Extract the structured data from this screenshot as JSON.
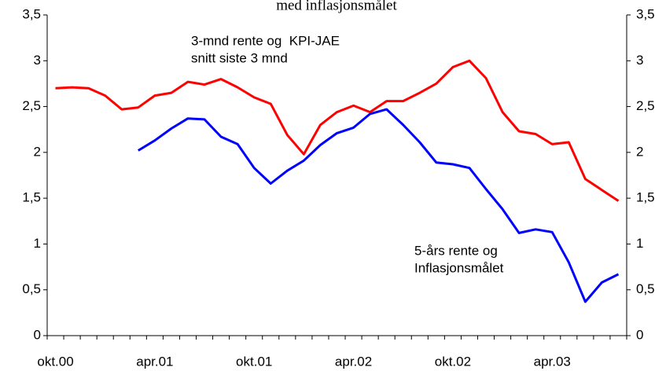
{
  "chart_data": {
    "type": "line",
    "title": "med inflasjonsmålet",
    "categories": [
      "okt.00",
      null,
      null,
      null,
      null,
      null,
      "apr.01",
      null,
      null,
      null,
      null,
      null,
      "okt.01",
      null,
      null,
      null,
      null,
      null,
      "apr.02",
      null,
      null,
      null,
      null,
      null,
      "okt.02",
      null,
      null,
      null,
      null,
      null,
      "apr.03",
      null,
      null,
      null,
      null
    ],
    "series": [
      {
        "label_lines": [
          "3-mnd rente og  KPI-JAE",
          "snitt siste 3 mnd"
        ],
        "color": "#ff0000",
        "values": [
          2.7,
          2.71,
          2.7,
          2.62,
          2.47,
          2.49,
          2.62,
          2.65,
          2.77,
          2.74,
          2.8,
          2.71,
          2.6,
          2.53,
          2.19,
          1.98,
          2.3,
          2.44,
          2.51,
          2.44,
          2.56,
          2.56,
          2.65,
          2.75,
          2.93,
          3.0,
          2.81,
          2.44,
          2.23,
          2.2,
          2.09,
          2.11,
          1.71,
          1.59,
          1.47
        ]
      },
      {
        "label_lines": [
          "5-års rente og",
          "Inflasjonsmålet"
        ],
        "color": "#0000ff",
        "values": [
          null,
          null,
          null,
          null,
          null,
          2.02,
          2.13,
          2.26,
          2.37,
          2.36,
          2.17,
          2.09,
          1.83,
          1.66,
          1.8,
          1.91,
          2.08,
          2.21,
          2.27,
          2.42,
          2.47,
          2.3,
          2.11,
          1.89,
          1.87,
          1.83,
          1.6,
          1.38,
          1.12,
          1.16,
          1.13,
          0.8,
          0.37,
          0.58,
          0.67
        ]
      }
    ],
    "ylim": [
      0,
      3.5
    ],
    "yticks": [
      0,
      {
        "value": 0.5,
        "label": "0,5"
      },
      1,
      {
        "value": 1.5,
        "label": "1,5"
      },
      2,
      {
        "value": 2.5,
        "label": "2,5"
      },
      3,
      {
        "value": 3.5,
        "label": "3,5"
      }
    ],
    "y2lim": [
      0,
      3.5
    ],
    "y2ticks": [
      0,
      {
        "value": 0.5,
        "label": "0,5"
      },
      1,
      {
        "value": 1.5,
        "label": "1,5"
      },
      2,
      {
        "value": 2.5,
        "label": "2,5"
      },
      3,
      {
        "value": 3.5,
        "label": "3,5"
      }
    ]
  }
}
